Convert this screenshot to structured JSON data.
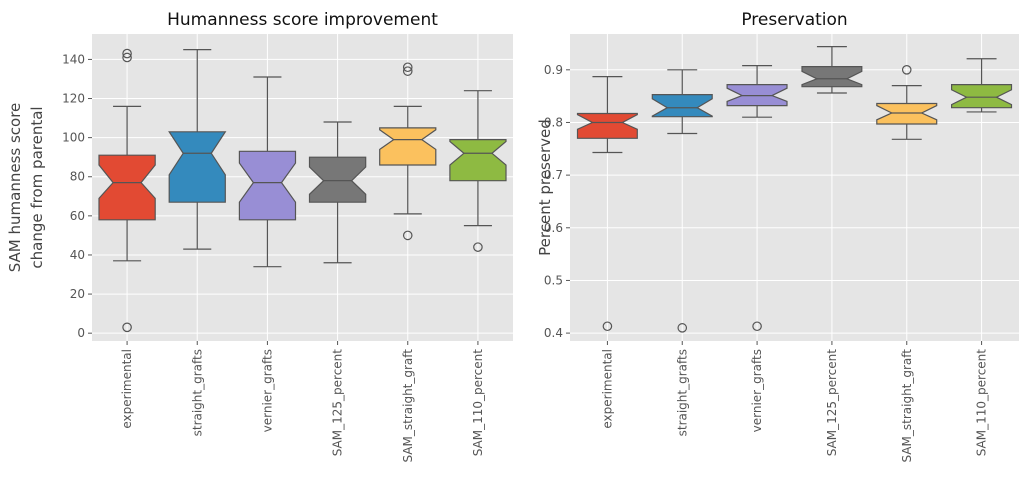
{
  "colors": {
    "panel_bg": "#e5e5e5",
    "grid": "#ffffff",
    "edge": "#555555",
    "boxes": [
      "#e24a33",
      "#348abd",
      "#988ed5",
      "#777777",
      "#fbc15e",
      "#8eba42"
    ]
  },
  "chart_data": [
    {
      "type": "box",
      "notched": true,
      "title": "Humanness score improvement",
      "ylabel_lines": [
        "SAM humanness score",
        "change from parental"
      ],
      "ylim": [
        -4,
        153
      ],
      "yticks": [
        0,
        20,
        40,
        60,
        80,
        100,
        120,
        140
      ],
      "grid": true,
      "categories": [
        "experimental",
        "straight_grafts",
        "vernier_grafts",
        "SAM_125_percent",
        "SAM_straight_graft",
        "SAM_110_percent"
      ],
      "boxes": [
        {
          "whislo": 37,
          "q1": 58,
          "med": 77,
          "q3": 91,
          "whishi": 116,
          "notch_lo": 69,
          "notch_hi": 86,
          "fliers": [
            3,
            141,
            143
          ]
        },
        {
          "whislo": 43,
          "q1": 67,
          "med": 92,
          "q3": 103,
          "whishi": 145,
          "notch_lo": 81,
          "notch_hi": 103,
          "fliers": []
        },
        {
          "whislo": 34,
          "q1": 58,
          "med": 77,
          "q3": 93,
          "whishi": 131,
          "notch_lo": 67,
          "notch_hi": 87,
          "fliers": []
        },
        {
          "whislo": 36,
          "q1": 67,
          "med": 78,
          "q3": 90,
          "whishi": 108,
          "notch_lo": 71,
          "notch_hi": 85,
          "fliers": []
        },
        {
          "whislo": 61,
          "q1": 86,
          "med": 99,
          "q3": 105,
          "whishi": 116,
          "notch_lo": 94,
          "notch_hi": 104,
          "fliers": [
            50,
            134,
            136
          ]
        },
        {
          "whislo": 55,
          "q1": 78,
          "med": 92,
          "q3": 99,
          "whishi": 124,
          "notch_lo": 86,
          "notch_hi": 98,
          "fliers": [
            44
          ]
        }
      ]
    },
    {
      "type": "box",
      "notched": true,
      "title": "Preservation",
      "ylabel_lines": [
        "Percent preserved"
      ],
      "ylim": [
        0.385,
        0.968
      ],
      "yticks": [
        0.4,
        0.5,
        0.6,
        0.7,
        0.8,
        0.9
      ],
      "grid": true,
      "categories": [
        "experimental",
        "straight_grafts",
        "vernier_grafts",
        "SAM_125_percent",
        "SAM_straight_graft",
        "SAM_110_percent"
      ],
      "boxes": [
        {
          "whislo": 0.743,
          "q1": 0.77,
          "med": 0.8,
          "q3": 0.817,
          "whishi": 0.887,
          "notch_lo": 0.787,
          "notch_hi": 0.815,
          "fliers": [
            0.413
          ]
        },
        {
          "whislo": 0.779,
          "q1": 0.811,
          "med": 0.828,
          "q3": 0.853,
          "whishi": 0.9,
          "notch_lo": 0.812,
          "notch_hi": 0.845,
          "fliers": [
            0.41
          ]
        },
        {
          "whislo": 0.81,
          "q1": 0.832,
          "med": 0.851,
          "q3": 0.872,
          "whishi": 0.908,
          "notch_lo": 0.84,
          "notch_hi": 0.865,
          "fliers": [
            0.413
          ]
        },
        {
          "whislo": 0.856,
          "q1": 0.868,
          "med": 0.883,
          "q3": 0.906,
          "whishi": 0.944,
          "notch_lo": 0.872,
          "notch_hi": 0.897,
          "fliers": []
        },
        {
          "whislo": 0.768,
          "q1": 0.797,
          "med": 0.818,
          "q3": 0.836,
          "whishi": 0.87,
          "notch_lo": 0.805,
          "notch_hi": 0.832,
          "fliers": [
            0.9
          ]
        },
        {
          "whislo": 0.82,
          "q1": 0.828,
          "med": 0.848,
          "q3": 0.872,
          "whishi": 0.921,
          "notch_lo": 0.834,
          "notch_hi": 0.862,
          "fliers": []
        }
      ]
    }
  ]
}
